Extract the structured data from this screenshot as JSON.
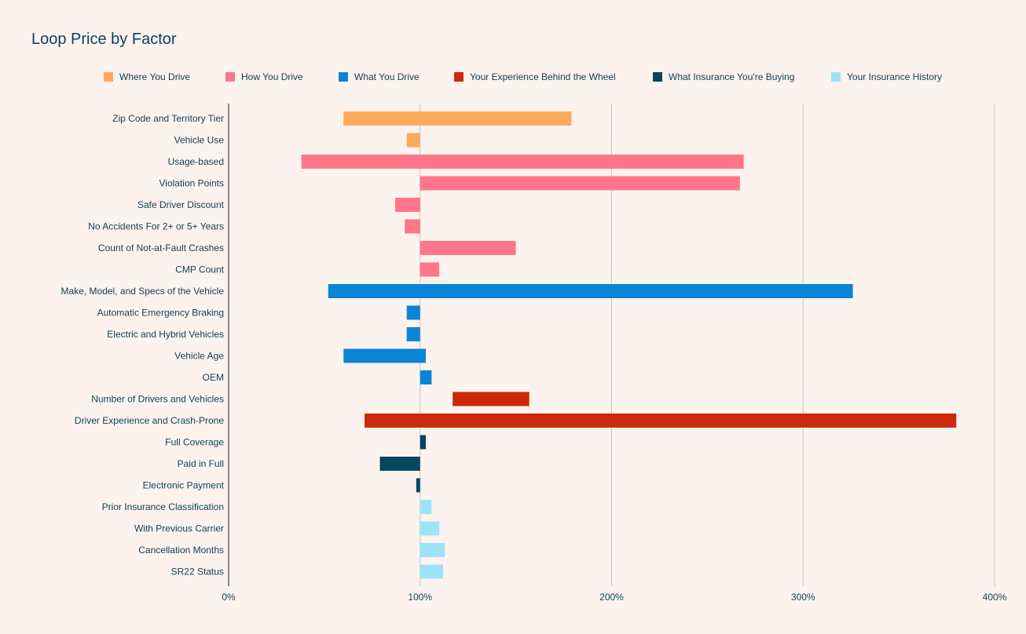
{
  "chart_data": {
    "type": "bar",
    "orientation": "horizontal",
    "style": "floating",
    "title": "Loop Price by Factor",
    "xlabel": "",
    "ylabel": "",
    "xlim": [
      0,
      400
    ],
    "x_ticks": [
      0,
      100,
      200,
      300,
      400
    ],
    "x_tick_labels": [
      "0%",
      "100%",
      "200%",
      "300%",
      "400%"
    ],
    "grid": true,
    "legend_position": "top",
    "series": [
      {
        "name": "Where You Drive",
        "color": "#ffa95b"
      },
      {
        "name": "How You Drive",
        "color": "#ff7589"
      },
      {
        "name": "What You Drive",
        "color": "#0a85d6"
      },
      {
        "name": "Your Experience Behind the Wheel",
        "color": "#cc280b"
      },
      {
        "name": "What Insurance You're Buying",
        "color": "#07465f"
      },
      {
        "name": "Your Insurance History",
        "color": "#9ce3fa"
      }
    ],
    "categories": [
      {
        "label": "Zip Code and Territory Tier",
        "series": 0,
        "min": 60,
        "max": 179
      },
      {
        "label": "Vehicle Use",
        "series": 0,
        "min": 93,
        "max": 100
      },
      {
        "label": "Usage-based",
        "series": 1,
        "min": 38,
        "max": 269
      },
      {
        "label": "Violation Points",
        "series": 1,
        "min": 100,
        "max": 267
      },
      {
        "label": "Safe Driver Discount",
        "series": 1,
        "min": 87,
        "max": 100
      },
      {
        "label": "No Accidents For 2+ or 5+ Years",
        "series": 1,
        "min": 92,
        "max": 100
      },
      {
        "label": "Count of Not-at-Fault Crashes",
        "series": 1,
        "min": 100,
        "max": 150
      },
      {
        "label": "CMP Count",
        "series": 1,
        "min": 100,
        "max": 110
      },
      {
        "label": "Make, Model, and Specs of the Vehicle",
        "series": 2,
        "min": 52,
        "max": 326
      },
      {
        "label": "Automatic Emergency Braking",
        "series": 2,
        "min": 93,
        "max": 100
      },
      {
        "label": "Electric and Hybrid Vehicles",
        "series": 2,
        "min": 93,
        "max": 100
      },
      {
        "label": "Vehicle Age",
        "series": 2,
        "min": 60,
        "max": 103
      },
      {
        "label": "OEM",
        "series": 2,
        "min": 100,
        "max": 106
      },
      {
        "label": "Number of Drivers and Vehicles",
        "series": 3,
        "min": 117,
        "max": 157
      },
      {
        "label": "Driver Experience and Crash-Prone",
        "series": 3,
        "min": 71,
        "max": 380
      },
      {
        "label": "Full Coverage",
        "series": 4,
        "min": 100,
        "max": 103
      },
      {
        "label": "Paid in Full",
        "series": 4,
        "min": 79,
        "max": 100
      },
      {
        "label": "Electronic Payment",
        "series": 4,
        "min": 98,
        "max": 100
      },
      {
        "label": "Prior Insurance Classification",
        "series": 5,
        "min": 100,
        "max": 106
      },
      {
        "label": "With Previous Carrier",
        "series": 5,
        "min": 100,
        "max": 110
      },
      {
        "label": "Cancellation Months",
        "series": 5,
        "min": 100,
        "max": 113
      },
      {
        "label": "SR22 Status",
        "series": 5,
        "min": 100,
        "max": 112
      }
    ]
  }
}
